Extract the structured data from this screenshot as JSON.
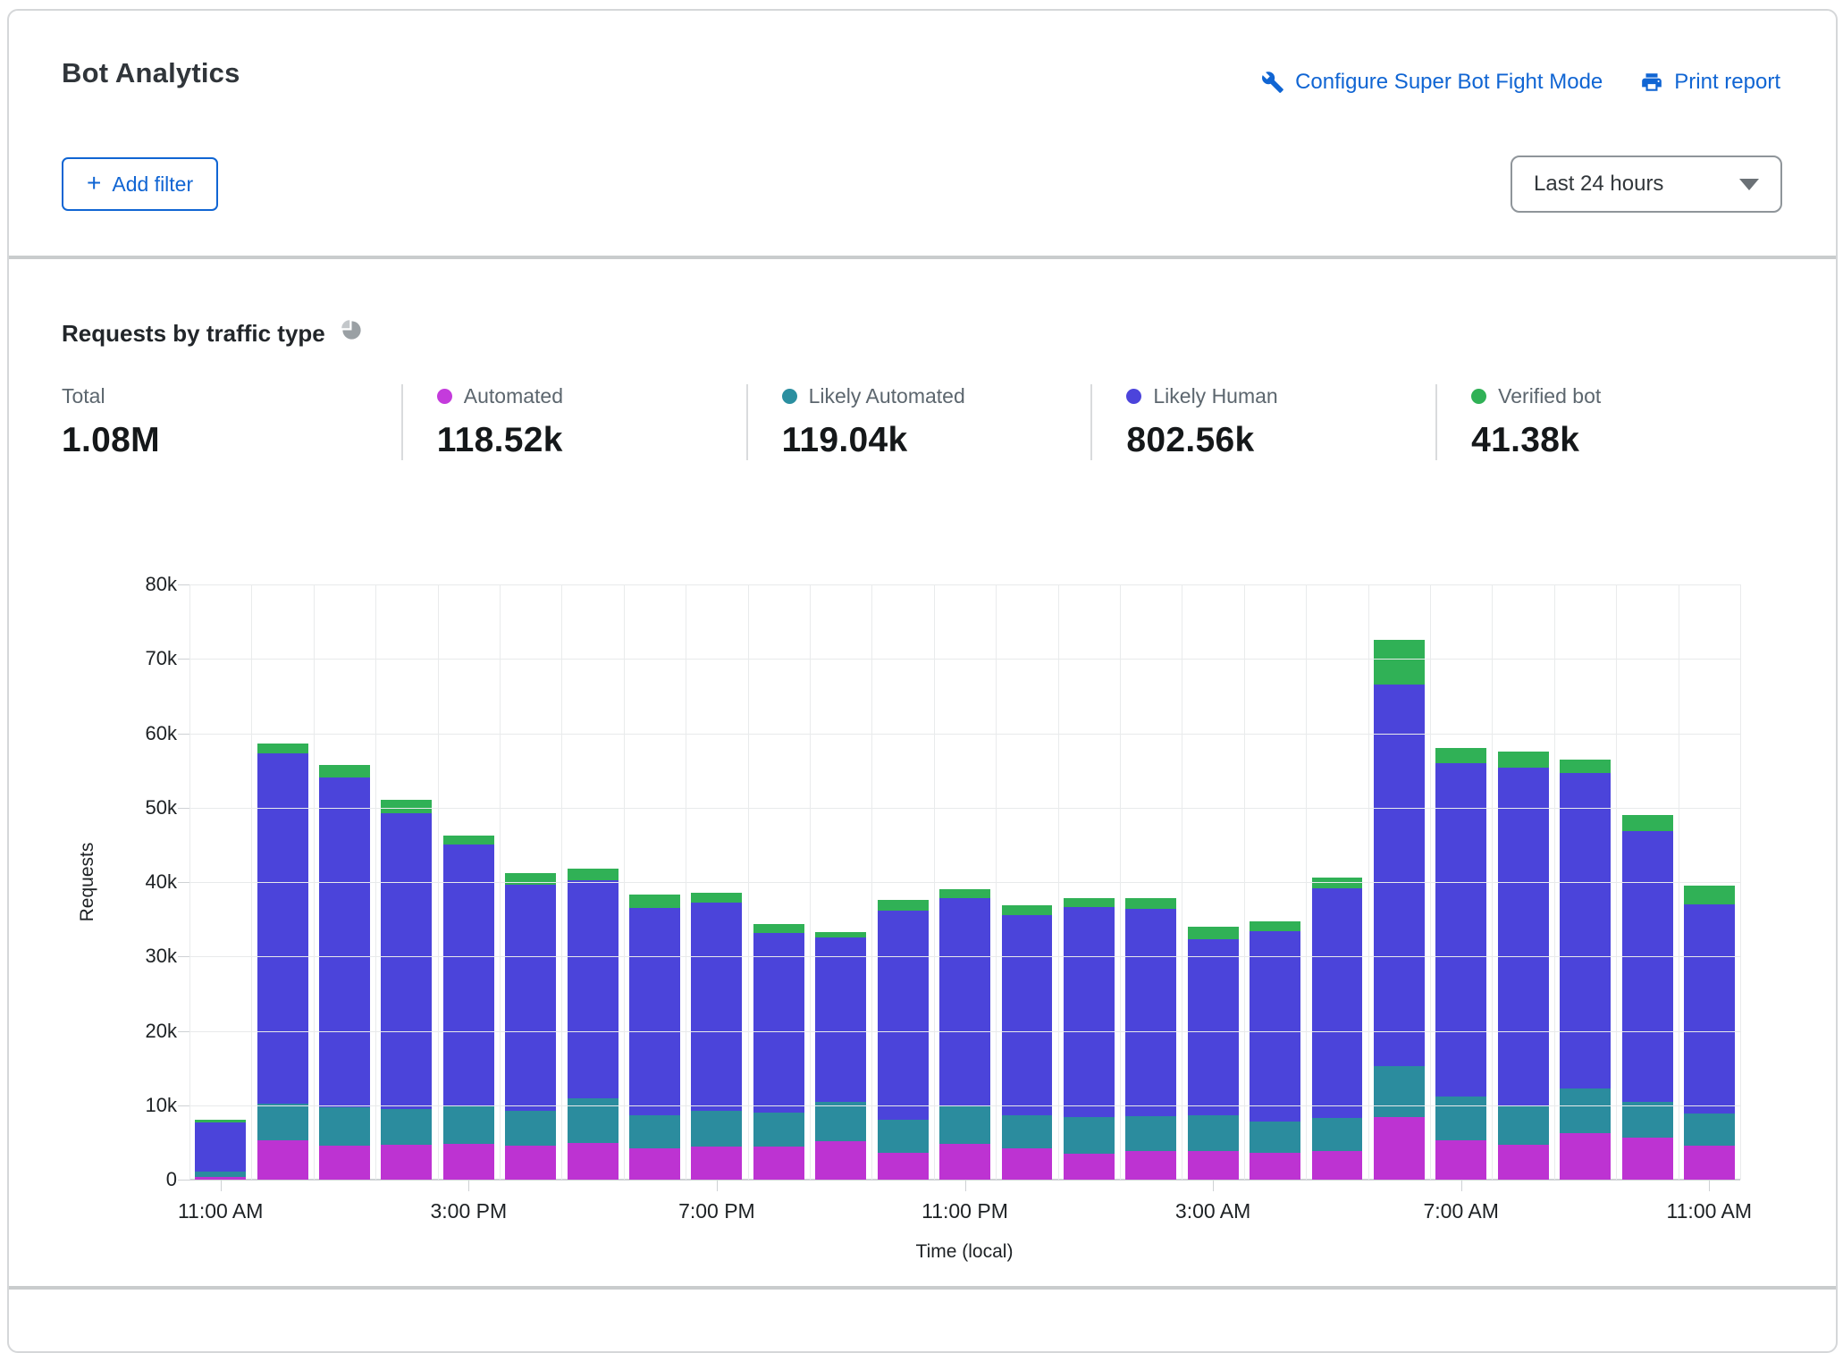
{
  "header": {
    "title": "Bot Analytics",
    "configure_link": "Configure Super Bot Fight Mode",
    "print_link": "Print report",
    "add_filter_label": "Add filter",
    "plus_glyph": "+",
    "time_range_value": "Last 24 hours"
  },
  "section": {
    "title": "Requests by traffic type"
  },
  "stats": [
    {
      "label": "Total",
      "value": "1.08M",
      "color": null
    },
    {
      "label": "Automated",
      "value": "118.52k",
      "color": "#c43bdc"
    },
    {
      "label": "Likely Automated",
      "value": "119.04k",
      "color": "#2b8fa0"
    },
    {
      "label": "Likely Human",
      "value": "802.56k",
      "color": "#4c44db"
    },
    {
      "label": "Verified bot",
      "value": "41.38k",
      "color": "#30b156"
    }
  ],
  "colors": {
    "link_blue": "#1065d3",
    "automated": "#bd33d2",
    "likely_automated": "#2b8c9e",
    "likely_human": "#4b44da",
    "verified_bot": "#30b156"
  },
  "chart_data": {
    "type": "bar",
    "stacked": true,
    "title": "Requests by traffic type",
    "xlabel": "Time (local)",
    "ylabel": "Requests",
    "ylim": [
      0,
      80000
    ],
    "yticks": [
      "80k",
      "70k",
      "60k",
      "50k",
      "40k",
      "30k",
      "20k",
      "10k",
      "0"
    ],
    "x": [
      "11:00 AM",
      "12:00 PM",
      "1:00 PM",
      "2:00 PM",
      "3:00 PM",
      "4:00 PM",
      "5:00 PM",
      "6:00 PM",
      "7:00 PM",
      "8:00 PM",
      "9:00 PM",
      "10:00 PM",
      "11:00 PM",
      "12:00 AM",
      "1:00 AM",
      "2:00 AM",
      "3:00 AM",
      "4:00 AM",
      "5:00 AM",
      "6:00 AM",
      "7:00 AM",
      "8:00 AM",
      "9:00 AM",
      "10:00 AM",
      "11:00 AM"
    ],
    "tick_indices": [
      0,
      4,
      8,
      12,
      16,
      20,
      24
    ],
    "tick_labels": [
      "11:00 AM",
      "3:00 PM",
      "7:00 PM",
      "11:00 PM",
      "3:00 AM",
      "7:00 AM",
      "11:00 AM"
    ],
    "series": [
      {
        "name": "Automated",
        "color": "#bd33d2",
        "values": [
          400,
          5300,
          4600,
          4700,
          4800,
          4600,
          4900,
          4200,
          4500,
          4400,
          5200,
          3600,
          4800,
          4200,
          3500,
          3900,
          3900,
          3600,
          3800,
          8400,
          5300,
          4700,
          6300,
          5600,
          4600
        ]
      },
      {
        "name": "Likely Automated",
        "color": "#2b8c9e",
        "values": [
          700,
          4900,
          5100,
          4800,
          5200,
          4700,
          6000,
          4400,
          4700,
          4600,
          5300,
          4400,
          5000,
          4400,
          4900,
          4600,
          4700,
          4200,
          4500,
          6800,
          5900,
          5300,
          5900,
          4900,
          4300
        ]
      },
      {
        "name": "Likely Human",
        "color": "#4b44da",
        "values": [
          6600,
          47100,
          44400,
          39800,
          35000,
          30400,
          29300,
          27900,
          28000,
          24200,
          22000,
          28200,
          28000,
          27000,
          28200,
          27900,
          23700,
          25600,
          30900,
          51300,
          44800,
          45400,
          42400,
          36300,
          28100
        ]
      },
      {
        "name": "Verified bot",
        "color": "#30b156",
        "values": [
          300,
          1300,
          1600,
          1700,
          1300,
          1500,
          1600,
          1800,
          1400,
          1100,
          800,
          1400,
          1200,
          1300,
          1200,
          1400,
          1700,
          1300,
          1400,
          6000,
          2000,
          2100,
          1900,
          2200,
          2500
        ]
      }
    ],
    "grid": true,
    "legend_position": "top"
  }
}
